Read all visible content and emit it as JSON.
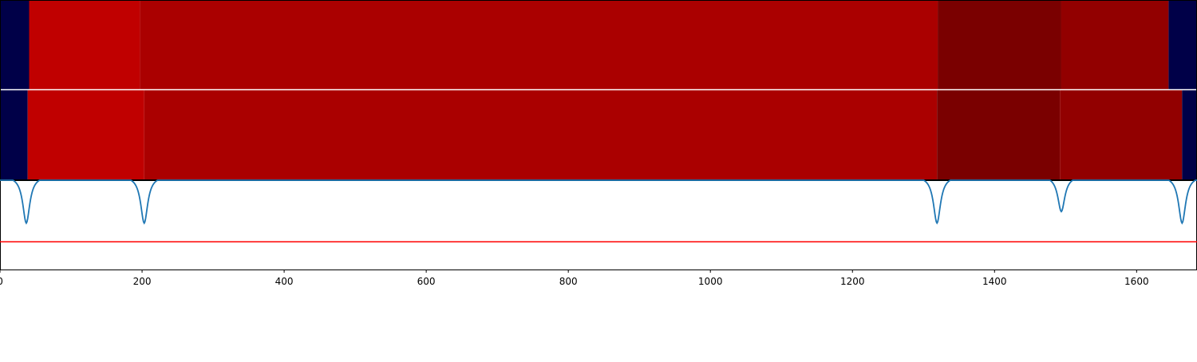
{
  "chart_data": [
    {
      "type": "heatmap",
      "rows": [
        {
          "segments": [
            {
              "start": 0,
              "end": 41,
              "color": "#000048"
            },
            {
              "start": 41,
              "end": 197,
              "color": "#c00000"
            },
            {
              "start": 197,
              "end": 1320,
              "color": "#aa0000"
            },
            {
              "start": 1320,
              "end": 1494,
              "color": "#7a0000"
            },
            {
              "start": 1494,
              "end": 1645,
              "color": "#920000"
            },
            {
              "start": 1645,
              "end": 1685,
              "color": "#000048"
            }
          ]
        },
        {
          "segments": [
            {
              "start": 0,
              "end": 39,
              "color": "#000048"
            },
            {
              "start": 39,
              "end": 203,
              "color": "#c00000"
            },
            {
              "start": 203,
              "end": 1319,
              "color": "#aa0000"
            },
            {
              "start": 1319,
              "end": 1492,
              "color": "#7a0000"
            },
            {
              "start": 1492,
              "end": 1664,
              "color": "#920000"
            },
            {
              "start": 1664,
              "end": 1685,
              "color": "#000048"
            }
          ]
        }
      ]
    },
    {
      "type": "line",
      "xlim": [
        0,
        1685
      ],
      "ylim": [
        0,
        1
      ],
      "series": [
        {
          "color": "#1f77b4",
          "dips": [
            {
              "x": 37,
              "min": 0.52
            },
            {
              "x": 203,
              "min": 0.52
            },
            {
              "x": 1319,
              "min": 0.52
            },
            {
              "x": 1494,
              "min": 0.65
            },
            {
              "x": 1664,
              "min": 0.52
            }
          ]
        }
      ],
      "threshold": {
        "y": 0.31,
        "color": "#ff0000"
      },
      "xticks": [
        0,
        200,
        400,
        600,
        800,
        1000,
        1200,
        1400,
        1600
      ],
      "xtick_labels": [
        "0",
        "200",
        "400",
        "600",
        "800",
        "1000",
        "1200",
        "1400",
        "1600"
      ]
    }
  ]
}
